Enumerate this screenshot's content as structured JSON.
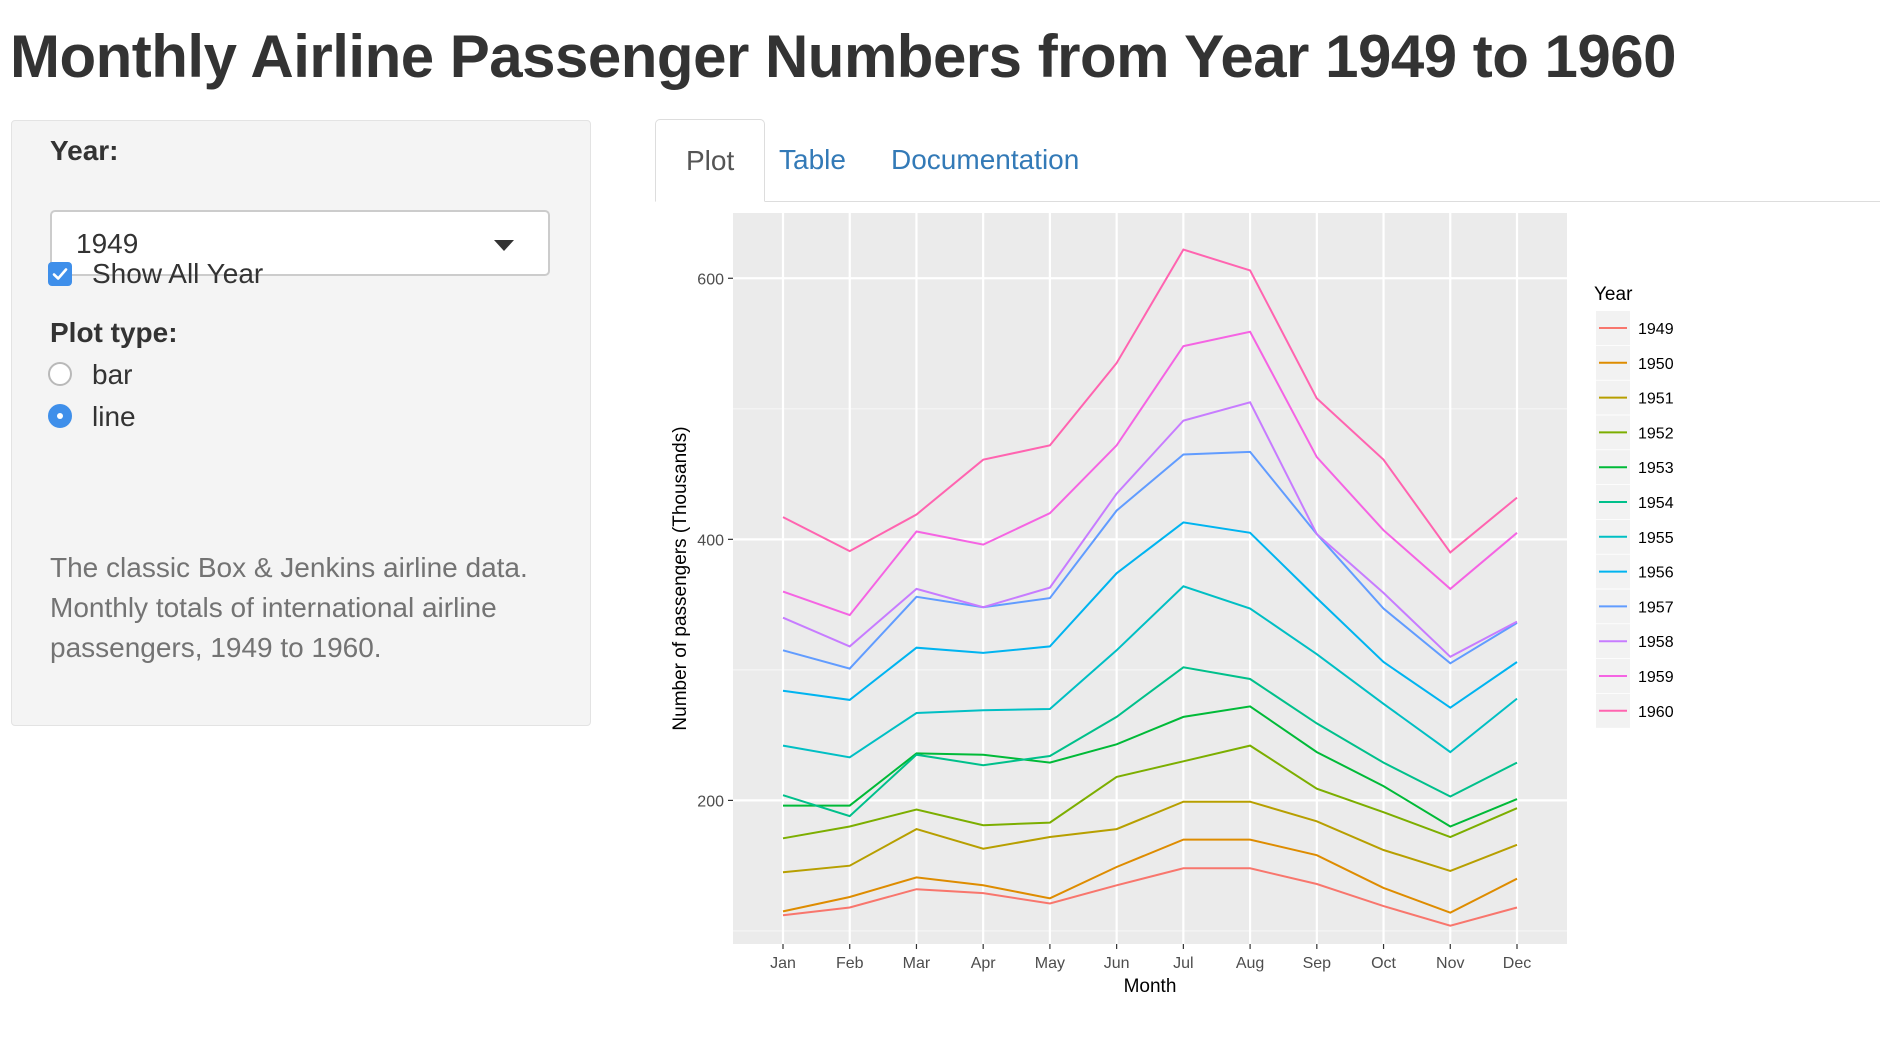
{
  "page": {
    "title": "Monthly Airline Passenger Numbers from Year 1949 to 1960"
  },
  "sidebar": {
    "year_label": "Year:",
    "year_selected": "1949",
    "show_all_label": "Show All Year",
    "show_all_checked": true,
    "plot_type_label": "Plot type:",
    "plot_options": [
      {
        "label": "bar",
        "selected": false
      },
      {
        "label": "line",
        "selected": true
      }
    ],
    "help_text": "The classic Box & Jenkins airline data. Monthly totals of international airline passengers, 1949 to 1960.",
    "accent_color": "#3f8fea"
  },
  "tabs": [
    {
      "label": "Plot",
      "active": true
    },
    {
      "label": "Table",
      "active": false
    },
    {
      "label": "Documentation",
      "active": false
    }
  ],
  "chart_data": {
    "type": "line",
    "xlabel": "Month",
    "ylabel": "Number of passengers (Thousands)",
    "legend_title": "Year",
    "legend_position": "right",
    "grid": true,
    "ylim": [
      90,
      650
    ],
    "yticks": [
      200,
      400,
      600
    ],
    "categories": [
      "Jan",
      "Feb",
      "Mar",
      "Apr",
      "May",
      "Jun",
      "Jul",
      "Aug",
      "Sep",
      "Oct",
      "Nov",
      "Dec"
    ],
    "series": [
      {
        "name": "1949",
        "color": "#F8766D",
        "values": [
          112,
          118,
          132,
          129,
          121,
          135,
          148,
          148,
          136,
          119,
          104,
          118
        ]
      },
      {
        "name": "1950",
        "color": "#DE8C00",
        "values": [
          115,
          126,
          141,
          135,
          125,
          149,
          170,
          170,
          158,
          133,
          114,
          140
        ]
      },
      {
        "name": "1951",
        "color": "#B79F00",
        "values": [
          145,
          150,
          178,
          163,
          172,
          178,
          199,
          199,
          184,
          162,
          146,
          166
        ]
      },
      {
        "name": "1952",
        "color": "#7CAE00",
        "values": [
          171,
          180,
          193,
          181,
          183,
          218,
          230,
          242,
          209,
          191,
          172,
          194
        ]
      },
      {
        "name": "1953",
        "color": "#00BA38",
        "values": [
          196,
          196,
          236,
          235,
          229,
          243,
          264,
          272,
          237,
          211,
          180,
          201
        ]
      },
      {
        "name": "1954",
        "color": "#00C08B",
        "values": [
          204,
          188,
          235,
          227,
          234,
          264,
          302,
          293,
          259,
          229,
          203,
          229
        ]
      },
      {
        "name": "1955",
        "color": "#00BFC4",
        "values": [
          242,
          233,
          267,
          269,
          270,
          315,
          364,
          347,
          312,
          274,
          237,
          278
        ]
      },
      {
        "name": "1956",
        "color": "#00B4F0",
        "values": [
          284,
          277,
          317,
          313,
          318,
          374,
          413,
          405,
          355,
          306,
          271,
          306
        ]
      },
      {
        "name": "1957",
        "color": "#619CFF",
        "values": [
          315,
          301,
          356,
          348,
          355,
          422,
          465,
          467,
          404,
          347,
          305,
          336
        ]
      },
      {
        "name": "1958",
        "color": "#C77CFF",
        "values": [
          340,
          318,
          362,
          348,
          363,
          435,
          491,
          505,
          404,
          359,
          310,
          337
        ]
      },
      {
        "name": "1959",
        "color": "#F564E3",
        "values": [
          360,
          342,
          406,
          396,
          420,
          472,
          548,
          559,
          463,
          407,
          362,
          405
        ]
      },
      {
        "name": "1960",
        "color": "#FF64B0",
        "values": [
          417,
          391,
          419,
          461,
          472,
          535,
          622,
          606,
          508,
          461,
          390,
          432
        ]
      }
    ]
  }
}
